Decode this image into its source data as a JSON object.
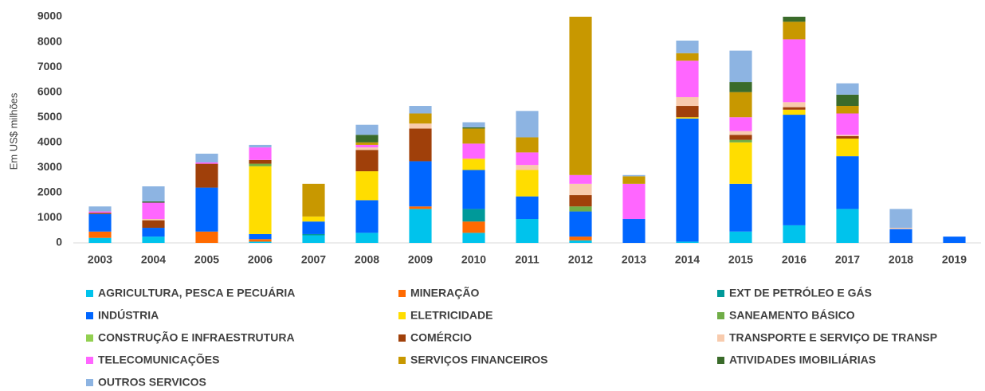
{
  "chart_data": {
    "type": "stacked_bar",
    "y_label": "Em US$ milhões",
    "categories": [
      "2003",
      "2004",
      "2005",
      "2006",
      "2007",
      "2008",
      "2009",
      "2010",
      "2011",
      "2012",
      "2013",
      "2014",
      "2015",
      "2016",
      "2017",
      "2018",
      "2019"
    ],
    "ylim": [
      0,
      9000
    ],
    "yticks": [
      0,
      1000,
      2000,
      3000,
      4000,
      5000,
      6000,
      7000,
      8000,
      9000
    ],
    "grid": false,
    "legend_position": "bottom",
    "series": [
      {
        "name": "AGRICULTURA, PESCA E PECUÁRIA",
        "color": "#00c3ec",
        "values": [
          200,
          250,
          0,
          50,
          300,
          400,
          1350,
          400,
          950,
          100,
          0,
          50,
          450,
          700,
          1350,
          0,
          0
        ]
      },
      {
        "name": "MINERAÇÃO",
        "color": "#ff6a00",
        "values": [
          250,
          0,
          450,
          100,
          0,
          0,
          100,
          450,
          0,
          150,
          0,
          0,
          0,
          0,
          0,
          0,
          0
        ]
      },
      {
        "name": "EXT DE PETRÓLEO E GÁS",
        "color": "#009999",
        "values": [
          0,
          0,
          0,
          0,
          50,
          0,
          0,
          500,
          0,
          0,
          0,
          0,
          0,
          0,
          0,
          0,
          0
        ]
      },
      {
        "name": "INDÚSTRIA",
        "color": "#0066ff",
        "values": [
          700,
          350,
          1750,
          200,
          500,
          1300,
          1800,
          1550,
          900,
          1000,
          950,
          4900,
          1900,
          4400,
          2100,
          550,
          250
        ]
      },
      {
        "name": "ELETRICIDADE",
        "color": "#ffdd00",
        "values": [
          0,
          0,
          0,
          2700,
          200,
          1150,
          0,
          450,
          1050,
          0,
          0,
          50,
          1650,
          200,
          700,
          0,
          0
        ]
      },
      {
        "name": "SANEAMENTO BÁSICO",
        "color": "#70ad47",
        "values": [
          0,
          0,
          0,
          100,
          0,
          0,
          0,
          0,
          0,
          200,
          0,
          0,
          100,
          0,
          0,
          0,
          0
        ]
      },
      {
        "name": "CONSTRUÇÃO E INFRAESTRUTURA",
        "color": "#92d050",
        "values": [
          0,
          0,
          0,
          0,
          0,
          0,
          0,
          0,
          0,
          0,
          0,
          0,
          0,
          0,
          0,
          0,
          0
        ]
      },
      {
        "name": "COMÉRCIO",
        "color": "#a0400a",
        "values": [
          50,
          300,
          950,
          150,
          0,
          850,
          1300,
          0,
          0,
          450,
          0,
          450,
          200,
          100,
          100,
          0,
          0
        ]
      },
      {
        "name": "TRANSPORTE E SERVIÇO DE TRANSP",
        "color": "#f8cbad",
        "values": [
          0,
          50,
          0,
          0,
          0,
          100,
          200,
          0,
          200,
          450,
          0,
          350,
          150,
          200,
          50,
          50,
          0
        ]
      },
      {
        "name": "TELECOMUNICAÇÕES",
        "color": "#ff66ff",
        "values": [
          50,
          650,
          50,
          500,
          0,
          100,
          0,
          600,
          500,
          350,
          1400,
          1450,
          550,
          2500,
          850,
          0,
          0
        ]
      },
      {
        "name": "SERVIÇOS FINANCEIROS",
        "color": "#c89800",
        "values": [
          0,
          0,
          0,
          0,
          1300,
          100,
          400,
          600,
          600,
          6300,
          300,
          300,
          1000,
          700,
          300,
          0,
          0
        ]
      },
      {
        "name": "ATIVIDADES IMOBILIÁRIAS",
        "color": "#3a6b2a",
        "values": [
          0,
          50,
          0,
          0,
          0,
          300,
          0,
          50,
          0,
          0,
          0,
          0,
          400,
          200,
          450,
          0,
          0
        ]
      },
      {
        "name": "OUTROS SERVICOS",
        "color": "#8db4e2",
        "values": [
          200,
          600,
          350,
          100,
          0,
          400,
          300,
          200,
          1050,
          0,
          50,
          500,
          1250,
          0,
          450,
          750,
          0
        ]
      }
    ]
  }
}
